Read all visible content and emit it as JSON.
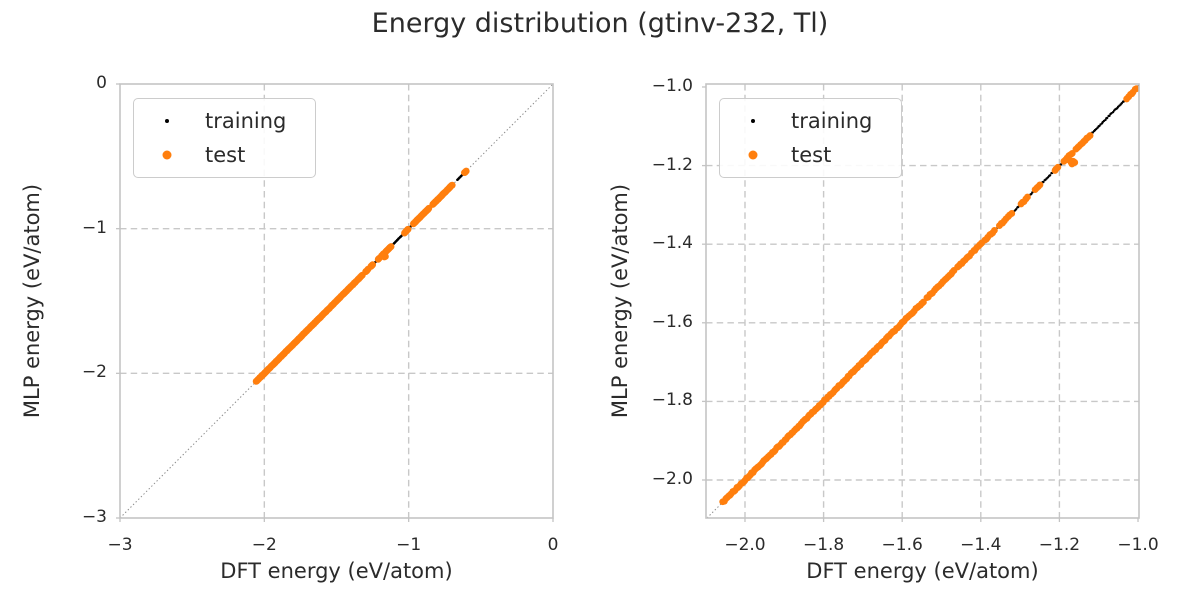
{
  "title": "Energy distribution (gtinv-232, Tl)",
  "axes": {
    "xlabel": "DFT energy (eV/atom)",
    "ylabel": "MLP energy (eV/atom)"
  },
  "legend": {
    "items": [
      {
        "label": "training",
        "color": "#000000",
        "marker_radius": 2.0
      },
      {
        "label": "test",
        "color": "#ff7f0e",
        "marker_radius": 4.5
      }
    ]
  },
  "style": {
    "background": "#ffffff",
    "text": "#2b2b2b",
    "grid": "#c8c8c8",
    "spine": "#c4c4c4",
    "diagonal": "#8c8c8c",
    "train_color": "#000000",
    "test_color": "#ff7f0e"
  },
  "chart_data": {
    "type": "scatter",
    "title": "Energy distribution (gtinv-232, Tl)",
    "xlabel": "DFT energy (eV/atom)",
    "ylabel": "MLP energy (eV/atom)",
    "grid": "dashed",
    "legend_position": "upper left",
    "identity_line": true,
    "panels": [
      {
        "name": "full-range",
        "xlim": [
          -3.0,
          0.0
        ],
        "ylim": [
          -3.0,
          0.0
        ],
        "xticks": [
          -3,
          -2,
          -1,
          0
        ],
        "xtick_labels": [
          "−3",
          "−2",
          "−1",
          "0"
        ],
        "yticks": [
          0,
          -1,
          -2,
          -3
        ],
        "ytick_labels": [
          "0",
          "−1",
          "−2",
          "−3"
        ]
      },
      {
        "name": "zoomed",
        "xlim": [
          -2.0992,
          -0.9975
        ],
        "ylim": [
          -2.0967,
          -0.9924
        ],
        "xticks": [
          -2.0,
          -1.8,
          -1.6,
          -1.4,
          -1.2,
          -1.0
        ],
        "xtick_labels": [
          "−2.0",
          "−1.8",
          "−1.6",
          "−1.4",
          "−1.2",
          "−1.0"
        ],
        "yticks": [
          -1.0,
          -1.2,
          -1.4,
          -1.6,
          -1.8,
          -2.0
        ],
        "ytick_labels": [
          "−1.0",
          "−1.2",
          "−1.4",
          "−1.6",
          "−1.8",
          "−2.0"
        ]
      }
    ],
    "series": [
      {
        "name": "training",
        "color": "#000000",
        "marker_radius_px": 1.2,
        "diagonal_segments": [
          {
            "from": -1.652,
            "to": -1.005,
            "step": 0.0028,
            "jitter": 0.0012
          },
          {
            "from": -1.01,
            "to": -0.972,
            "step": 0.003,
            "jitter": 0.0012
          },
          {
            "from": -0.858,
            "to": -0.836,
            "step": 0.003,
            "jitter": 0.0012
          },
          {
            "from": -0.664,
            "to": -0.622,
            "step": 0.003,
            "jitter": 0.0012
          }
        ],
        "points": []
      },
      {
        "name": "test",
        "color": "#ff7f0e",
        "marker_radius_px": 3.4,
        "diagonal_segments": [
          {
            "from": -2.056,
            "to": -1.585,
            "step": 0.0035,
            "jitter": 0.0018
          },
          {
            "from": -1.578,
            "to": -1.545,
            "step": 0.004,
            "jitter": 0.0016
          },
          {
            "from": -1.538,
            "to": -1.508,
            "step": 0.004,
            "jitter": 0.0016
          },
          {
            "from": -1.5,
            "to": -1.468,
            "step": 0.004,
            "jitter": 0.0016
          },
          {
            "from": -1.46,
            "to": -1.425,
            "step": 0.004,
            "jitter": 0.0016
          },
          {
            "from": -1.418,
            "to": -1.398,
            "step": 0.004,
            "jitter": 0.0016
          },
          {
            "from": -1.39,
            "to": -1.364,
            "step": 0.004,
            "jitter": 0.0016
          },
          {
            "from": -1.352,
            "to": -1.338,
            "step": 0.004,
            "jitter": 0.0016
          },
          {
            "from": -1.33,
            "to": -1.322,
            "step": 0.004,
            "jitter": 0.0016
          },
          {
            "from": -1.298,
            "to": -1.284,
            "step": 0.004,
            "jitter": 0.0016
          },
          {
            "from": -1.262,
            "to": -1.252,
            "step": 0.004,
            "jitter": 0.0016
          },
          {
            "from": -1.212,
            "to": -1.204,
            "step": 0.004,
            "jitter": 0.0016
          },
          {
            "from": -1.188,
            "to": -1.168,
            "step": 0.004,
            "jitter": 0.0016
          },
          {
            "from": -1.158,
            "to": -1.122,
            "step": 0.004,
            "jitter": 0.0016
          },
          {
            "from": -1.028,
            "to": -1.006,
            "step": 0.004,
            "jitter": 0.0016
          },
          {
            "from": -0.968,
            "to": -0.86,
            "step": 0.004,
            "jitter": 0.0016
          },
          {
            "from": -0.834,
            "to": -0.698,
            "step": 0.004,
            "jitter": 0.0016
          },
          {
            "from": -0.614,
            "to": -0.604,
            "step": 0.004,
            "jitter": 0.0016
          }
        ],
        "points": [
          [
            -1.17,
            -1.192
          ],
          [
            -1.165,
            -1.189
          ],
          [
            -1.168,
            -1.196
          ],
          [
            -1.161,
            -1.192
          ],
          [
            -1.174,
            -1.187
          ]
        ]
      }
    ]
  }
}
